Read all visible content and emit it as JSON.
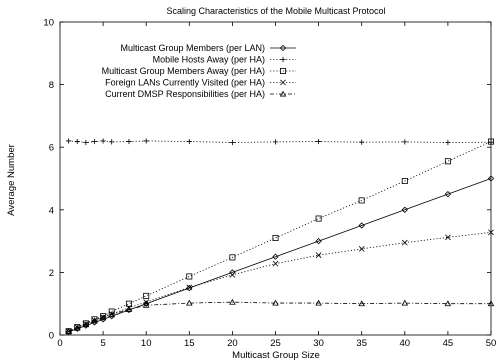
{
  "chart_data": {
    "type": "line",
    "title": "Scaling Characteristics of the Mobile Multicast Protocol",
    "xlabel": "Multicast Group Size",
    "ylabel": "Average Number",
    "xlim": [
      0,
      50
    ],
    "ylim": [
      0,
      10
    ],
    "xticks": [
      0,
      5,
      10,
      15,
      20,
      25,
      30,
      35,
      40,
      45,
      50
    ],
    "yticks": [
      0,
      2,
      4,
      6,
      8,
      10
    ],
    "grid": false,
    "legend_position": "top-right",
    "series": [
      {
        "name": "Multicast Group Members (per LAN)",
        "marker": "diamond",
        "dash": "solid",
        "x": [
          1,
          2,
          3,
          4,
          5,
          6,
          8,
          10,
          15,
          20,
          25,
          30,
          35,
          40,
          45,
          50
        ],
        "y": [
          0.1,
          0.2,
          0.3,
          0.4,
          0.5,
          0.6,
          0.8,
          1.0,
          1.5,
          2.0,
          2.5,
          3.0,
          3.5,
          4.0,
          4.5,
          5.0
        ]
      },
      {
        "name": "Mobile Hosts Away (per HA)",
        "marker": "plus",
        "dash": "dotted",
        "x": [
          1,
          2,
          3,
          4,
          5,
          6,
          8,
          10,
          15,
          20,
          25,
          30,
          35,
          40,
          45,
          50
        ],
        "y": [
          6.2,
          6.18,
          6.15,
          6.18,
          6.2,
          6.17,
          6.18,
          6.2,
          6.18,
          6.15,
          6.17,
          6.18,
          6.16,
          6.17,
          6.15,
          6.16
        ]
      },
      {
        "name": "Multicast Group Members Away (per HA)",
        "marker": "square",
        "dash": "dotted",
        "x": [
          1,
          2,
          3,
          4,
          5,
          6,
          8,
          10,
          15,
          20,
          25,
          30,
          35,
          40,
          45,
          50
        ],
        "y": [
          0.12,
          0.25,
          0.37,
          0.5,
          0.6,
          0.75,
          1.0,
          1.25,
          1.87,
          2.48,
          3.1,
          3.72,
          4.3,
          4.92,
          5.55,
          6.18
        ]
      },
      {
        "name": "Foreign LANs Currently Visited (per HA)",
        "marker": "cross",
        "dash": "dotted",
        "x": [
          1,
          2,
          3,
          4,
          5,
          6,
          8,
          10,
          15,
          20,
          25,
          30,
          35,
          40,
          45,
          50
        ],
        "y": [
          0.12,
          0.25,
          0.35,
          0.47,
          0.57,
          0.67,
          0.87,
          1.05,
          1.52,
          1.92,
          2.28,
          2.55,
          2.75,
          2.95,
          3.12,
          3.28
        ]
      },
      {
        "name": "Current DMSP Responsibilities (per HA)",
        "marker": "triangle",
        "dash": "dashdot",
        "x": [
          1,
          2,
          3,
          4,
          5,
          6,
          8,
          10,
          15,
          20,
          25,
          30,
          35,
          40,
          45,
          50
        ],
        "y": [
          0.12,
          0.22,
          0.33,
          0.45,
          0.55,
          0.65,
          0.82,
          0.95,
          1.02,
          1.05,
          1.02,
          1.02,
          1.0,
          1.02,
          1.0,
          1.0
        ]
      }
    ]
  },
  "colors": {
    "ink": "#000000",
    "background": "#ffffff"
  }
}
